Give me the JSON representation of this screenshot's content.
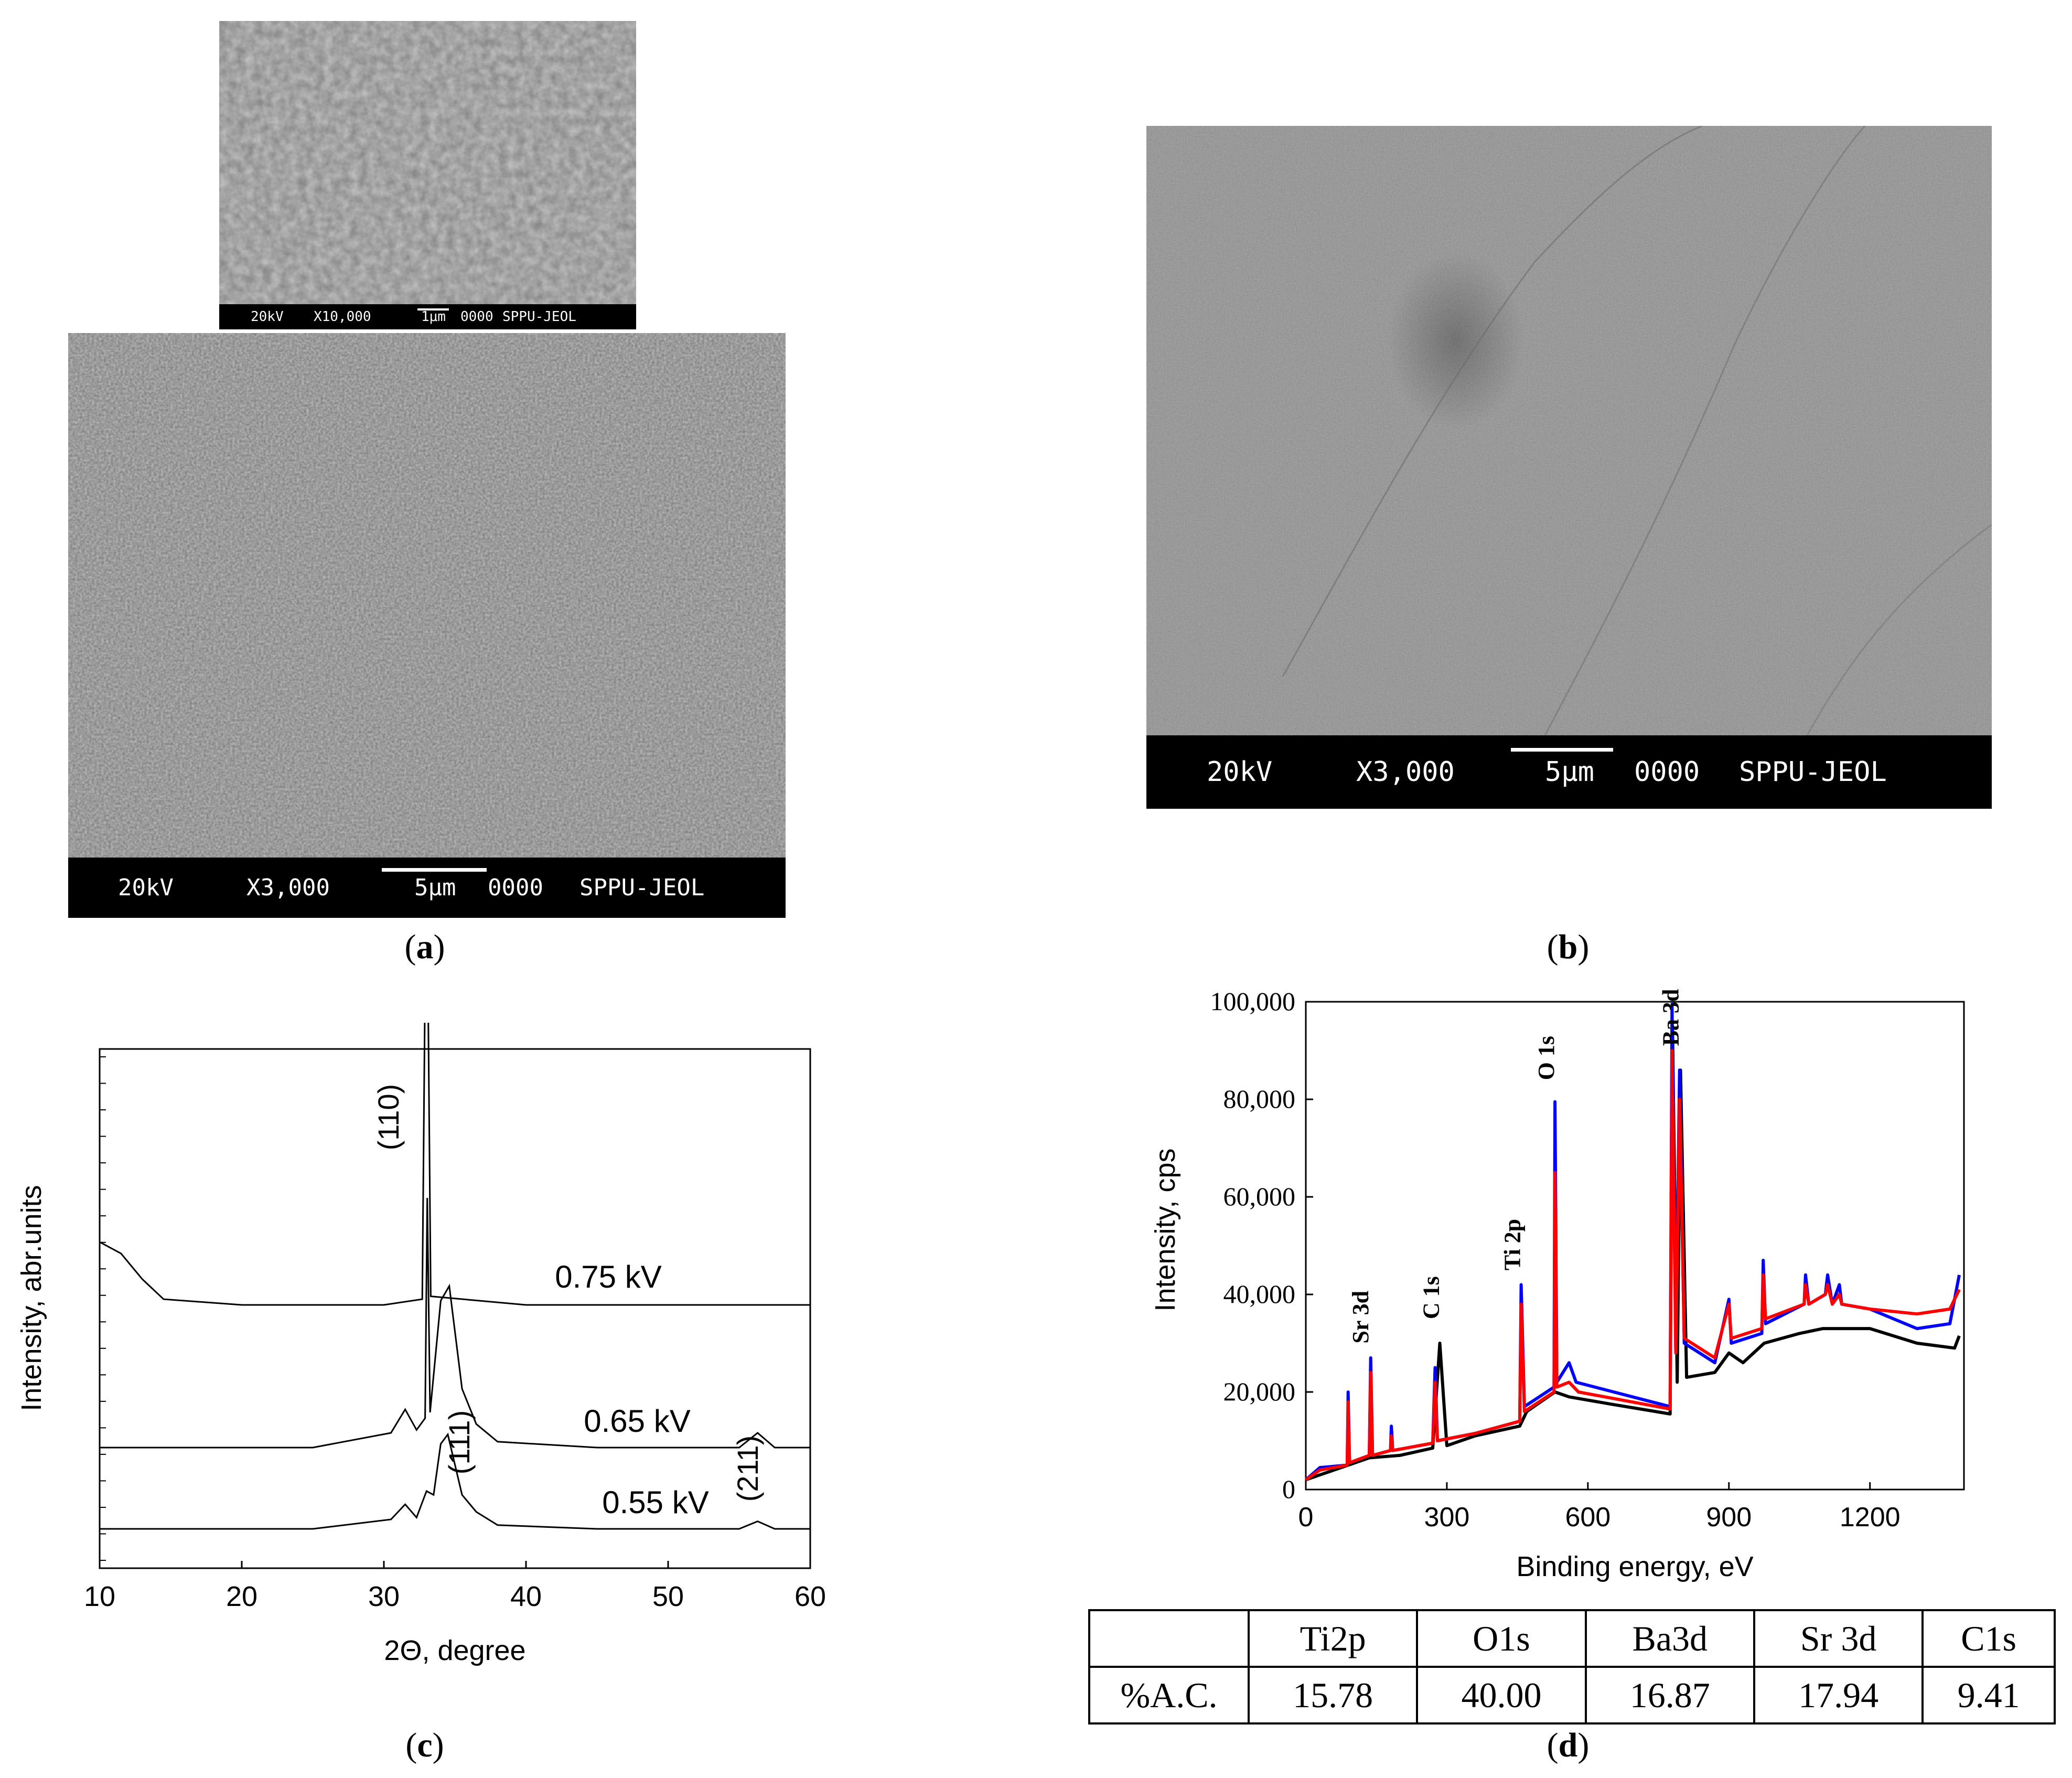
{
  "panels": {
    "a": {
      "label": "a",
      "inset": {
        "kv": "20kV",
        "mag": "X10,000",
        "scale": "1μm",
        "id": "0000",
        "lab": "SPPU-JEOL"
      },
      "main": {
        "kv": "20kV",
        "mag": "X3,000",
        "scale": "5μm",
        "id": "0000",
        "lab": "SPPU-JEOL"
      }
    },
    "b": {
      "label": "b",
      "main": {
        "kv": "20kV",
        "mag": "X3,000",
        "scale": "5μm",
        "id": "0000",
        "lab": "SPPU-JEOL"
      }
    },
    "c": {
      "label": "c"
    },
    "d": {
      "label": "d"
    }
  },
  "chart_data": [
    {
      "type": "line",
      "xlabel": "2Θ, degree",
      "ylabel": "Intensity, abr.units",
      "xlim": [
        10,
        60
      ],
      "xticks": [
        10,
        20,
        30,
        40,
        50,
        60
      ],
      "series": [
        {
          "name": "0.75 kV",
          "peaks": [
            {
              "x": 33.0,
              "label": "(110)"
            }
          ],
          "points": [
            [
              10,
              0.22
            ],
            [
              11.5,
              0.18
            ],
            [
              13,
              0.09
            ],
            [
              14.5,
              0.02
            ],
            [
              20,
              0.0
            ],
            [
              30,
              0.0
            ],
            [
              32.7,
              0.02
            ],
            [
              33.0,
              1.7
            ],
            [
              33.3,
              0.03
            ],
            [
              40,
              0.0
            ],
            [
              50,
              0.0
            ],
            [
              60,
              0.0
            ]
          ]
        },
        {
          "name": "0.65 kV",
          "peaks": [
            {
              "x": 34.3,
              "label": "(111)"
            },
            {
              "x": 56.3,
              "label": "(211)"
            }
          ],
          "points": [
            [
              10,
              0.0
            ],
            [
              25,
              0.0
            ],
            [
              30.5,
              0.05
            ],
            [
              31.5,
              0.13
            ],
            [
              32.3,
              0.06
            ],
            [
              32.9,
              0.1
            ],
            [
              33.05,
              0.85
            ],
            [
              33.25,
              0.12
            ],
            [
              34.0,
              0.5
            ],
            [
              34.6,
              0.55
            ],
            [
              35.5,
              0.2
            ],
            [
              36.5,
              0.08
            ],
            [
              38,
              0.02
            ],
            [
              45,
              0.0
            ],
            [
              55,
              0.0
            ],
            [
              56.3,
              0.05
            ],
            [
              57.5,
              0.0
            ],
            [
              60,
              0.0
            ]
          ]
        },
        {
          "name": "0.55 kV",
          "points": [
            [
              10,
              0.0
            ],
            [
              25,
              0.0
            ],
            [
              30.5,
              0.05
            ],
            [
              31.5,
              0.13
            ],
            [
              32.3,
              0.06
            ],
            [
              33.0,
              0.2
            ],
            [
              33.5,
              0.18
            ],
            [
              34.0,
              0.45
            ],
            [
              34.5,
              0.5
            ],
            [
              35.5,
              0.18
            ],
            [
              36.5,
              0.09
            ],
            [
              38,
              0.02
            ],
            [
              45,
              0.0
            ],
            [
              55,
              0.0
            ],
            [
              56.3,
              0.04
            ],
            [
              57.5,
              0.0
            ],
            [
              60,
              0.0
            ]
          ]
        }
      ]
    },
    {
      "type": "line",
      "xlabel": "Binding energy, eV",
      "ylabel": "Intensity, cps",
      "xlim": [
        0,
        1400
      ],
      "ylim": [
        0,
        100000
      ],
      "xticks": [
        "0",
        "300",
        "600",
        "900",
        "1200"
      ],
      "yticks": [
        "0",
        "20,000",
        "40,000",
        "60,000",
        "80,000",
        "100,000"
      ],
      "annotations": [
        {
          "x": 135,
          "y": 28000,
          "text": "Sr 3d"
        },
        {
          "x": 285,
          "y": 33000,
          "text": "C 1s"
        },
        {
          "x": 458,
          "y": 43000,
          "text": "Ti 2p"
        },
        {
          "x": 530,
          "y": 82000,
          "text": "O 1s"
        },
        {
          "x": 795,
          "y": 89000,
          "text": "Ba 3d"
        }
      ],
      "series": [
        {
          "color": "#000000",
          "points": [
            [
              0,
              2000
            ],
            [
              30,
              3000
            ],
            [
              90,
              5000
            ],
            [
              135,
              6500
            ],
            [
              200,
              7000
            ],
            [
              270,
              8500
            ],
            [
              285,
              30000
            ],
            [
              300,
              9000
            ],
            [
              360,
              11000
            ],
            [
              455,
              13000
            ],
            [
              470,
              16000
            ],
            [
              530,
              20000
            ],
            [
              560,
              19000
            ],
            [
              650,
              17500
            ],
            [
              775,
              15500
            ],
            [
              780,
              95000
            ],
            [
              790,
              22000
            ],
            [
              797,
              86000
            ],
            [
              810,
              23000
            ],
            [
              870,
              24000
            ],
            [
              900,
              28000
            ],
            [
              930,
              26000
            ],
            [
              975,
              30000
            ],
            [
              1050,
              32000
            ],
            [
              1100,
              33000
            ],
            [
              1200,
              33000
            ],
            [
              1300,
              30000
            ],
            [
              1380,
              29000
            ],
            [
              1390,
              31500
            ]
          ]
        },
        {
          "color": "#0000ff",
          "points": [
            [
              0,
              2000
            ],
            [
              30,
              4500
            ],
            [
              88,
              5000
            ],
            [
              90,
              20000
            ],
            [
              93,
              5500
            ],
            [
              135,
              7000
            ],
            [
              138,
              27000
            ],
            [
              142,
              7000
            ],
            [
              180,
              8000
            ],
            [
              182,
              13000
            ],
            [
              185,
              8000
            ],
            [
              270,
              9500
            ],
            [
              275,
              25000
            ],
            [
              280,
              10000
            ],
            [
              360,
              11500
            ],
            [
              455,
              14000
            ],
            [
              458,
              42000
            ],
            [
              465,
              17000
            ],
            [
              528,
              21000
            ],
            [
              530,
              79500
            ],
            [
              534,
              22000
            ],
            [
              560,
              26000
            ],
            [
              575,
              22000
            ],
            [
              775,
              17000
            ],
            [
              779,
              99500
            ],
            [
              787,
              28000
            ],
            [
              795,
              86000
            ],
            [
              805,
              30000
            ],
            [
              870,
              26000
            ],
            [
              900,
              39000
            ],
            [
              905,
              30000
            ],
            [
              970,
              32000
            ],
            [
              973,
              47000
            ],
            [
              978,
              34000
            ],
            [
              1060,
              38000
            ],
            [
              1063,
              44000
            ],
            [
              1070,
              38000
            ],
            [
              1105,
              40000
            ],
            [
              1110,
              44000
            ],
            [
              1120,
              38000
            ],
            [
              1135,
              42000
            ],
            [
              1140,
              38000
            ],
            [
              1200,
              37000
            ],
            [
              1300,
              33000
            ],
            [
              1370,
              34000
            ],
            [
              1390,
              44000
            ]
          ]
        },
        {
          "color": "#ff0000",
          "points": [
            [
              0,
              2000
            ],
            [
              30,
              4000
            ],
            [
              88,
              5000
            ],
            [
              90,
              18000
            ],
            [
              93,
              5500
            ],
            [
              135,
              7000
            ],
            [
              138,
              24000
            ],
            [
              142,
              7000
            ],
            [
              180,
              8000
            ],
            [
              182,
              11000
            ],
            [
              185,
              8000
            ],
            [
              270,
              9500
            ],
            [
              275,
              22000
            ],
            [
              280,
              10000
            ],
            [
              360,
              11500
            ],
            [
              455,
              14000
            ],
            [
              458,
              38000
            ],
            [
              465,
              16000
            ],
            [
              528,
              20000
            ],
            [
              530,
              65000
            ],
            [
              534,
              21000
            ],
            [
              560,
              22000
            ],
            [
              580,
              20000
            ],
            [
              775,
              16500
            ],
            [
              779,
              90000
            ],
            [
              787,
              28000
            ],
            [
              795,
              80000
            ],
            [
              805,
              31000
            ],
            [
              870,
              27000
            ],
            [
              900,
              38000
            ],
            [
              905,
              31000
            ],
            [
              970,
              33000
            ],
            [
              973,
              44000
            ],
            [
              978,
              35000
            ],
            [
              1060,
              38000
            ],
            [
              1063,
              42000
            ],
            [
              1070,
              38000
            ],
            [
              1105,
              40000
            ],
            [
              1110,
              42000
            ],
            [
              1120,
              38000
            ],
            [
              1135,
              40000
            ],
            [
              1140,
              38000
            ],
            [
              1200,
              37000
            ],
            [
              1300,
              36000
            ],
            [
              1370,
              37000
            ],
            [
              1390,
              41000
            ]
          ]
        }
      ]
    }
  ],
  "table": {
    "headers": [
      "",
      "Ti2p",
      "O1s",
      "Ba3d",
      "Sr 3d",
      "C1s"
    ],
    "row": [
      "%A.C.",
      "15.78",
      "40.00",
      "16.87",
      "17.94",
      "9.41"
    ]
  }
}
